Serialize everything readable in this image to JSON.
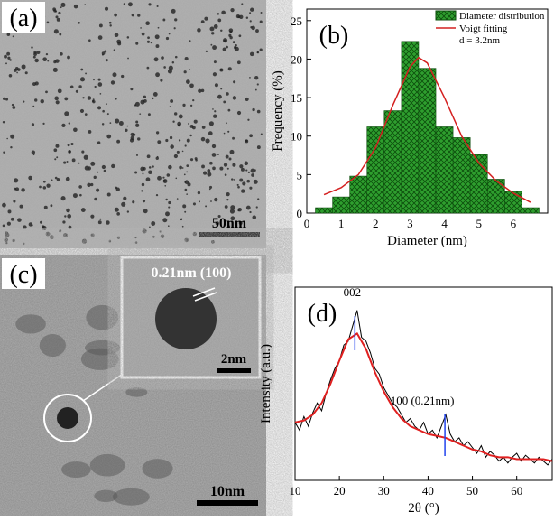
{
  "panels": {
    "a": {
      "label": "(a)",
      "scale_bar": "50nm"
    },
    "c": {
      "label": "(c)",
      "scale_bar": "10nm",
      "inset_label": "0.21nm (100)",
      "inset_scale_bar": "2nm"
    }
  },
  "chart_data": [
    {
      "type": "histogram",
      "label": "(b)",
      "name": "Diameter distribution",
      "color": "#2e9e2e",
      "xlabel": "Diameter (nm)",
      "ylabel": "Frequency (%)",
      "bins": [
        0.25,
        0.75,
        1.25,
        1.75,
        2.25,
        2.75,
        3.25,
        3.75,
        4.25,
        4.75,
        5.25,
        5.75,
        6.25,
        6.75
      ],
      "values": [
        0.7,
        2.1,
        4.8,
        11.2,
        13.3,
        22.3,
        18.8,
        11.2,
        9.8,
        7.6,
        4.4,
        2.8,
        0.7
      ],
      "fit": {
        "name": "Voigt fitting",
        "color": "#d42020",
        "x": [
          0.5,
          1,
          1.5,
          2,
          2.5,
          3,
          3.25,
          3.5,
          4,
          4.5,
          5,
          5.5,
          6,
          6.5
        ],
        "values": [
          2.4,
          3.3,
          5,
          8.5,
          14,
          19,
          20.2,
          19.5,
          15,
          10,
          6.5,
          4.2,
          2.6,
          1.4
        ]
      },
      "annotation": "d = 3.2nm",
      "xlim": [
        0,
        7
      ],
      "ylim": [
        0,
        26.5
      ],
      "xticks": [
        0,
        1,
        2,
        3,
        4,
        5,
        6
      ],
      "yticks": [
        0,
        5,
        10,
        15,
        20,
        25
      ]
    },
    {
      "type": "line",
      "label": "(d)",
      "xlabel": "2θ (°)",
      "ylabel": "Intensity (a.u.)",
      "xlim": [
        10,
        68
      ],
      "ylim": [
        0,
        100
      ],
      "xticks": [
        10,
        20,
        30,
        40,
        50,
        60
      ],
      "series": [
        {
          "name": null,
          "color": "#000000",
          "x": [
            10,
            11,
            12,
            13,
            14,
            15,
            16,
            17,
            18,
            19,
            20,
            21,
            22,
            23,
            24,
            25,
            26,
            27,
            28,
            29,
            30,
            31,
            32,
            33,
            34,
            35,
            36,
            37,
            38,
            39,
            40,
            41,
            42,
            43,
            44,
            45,
            46,
            47,
            48,
            49,
            50,
            51,
            52,
            53,
            54,
            55,
            56,
            57,
            58,
            59,
            60,
            61,
            62,
            63,
            64,
            65,
            66,
            67,
            68
          ],
          "values": [
            30,
            26,
            33,
            28,
            35,
            40,
            36,
            45,
            52,
            58,
            62,
            70,
            72,
            80,
            88,
            74,
            72,
            66,
            58,
            55,
            48,
            44,
            40,
            38,
            34,
            30,
            32,
            28,
            26,
            30,
            24,
            26,
            22,
            28,
            34,
            24,
            20,
            22,
            18,
            20,
            17,
            14,
            18,
            12,
            15,
            13,
            10,
            12,
            9,
            12,
            14,
            10,
            13,
            11,
            9,
            12,
            10,
            8,
            11
          ]
        },
        {
          "name": null,
          "color": "#e02020",
          "x": [
            10,
            12,
            14,
            16,
            18,
            20,
            22,
            24,
            26,
            28,
            30,
            32,
            34,
            36,
            38,
            40,
            42,
            44,
            46,
            48,
            50,
            52,
            54,
            56,
            58,
            60,
            62,
            64,
            66,
            68
          ],
          "values": [
            30,
            31,
            34,
            40,
            50,
            62,
            73,
            76,
            68,
            56,
            46,
            38,
            32,
            28,
            26,
            24,
            23,
            22,
            20,
            18,
            16,
            15,
            13,
            12,
            12,
            11,
            11,
            11,
            11,
            10
          ]
        }
      ],
      "peaks": [
        {
          "x": 23.5,
          "label": "002"
        },
        {
          "x": 43.8,
          "label": "100 (0.21nm)"
        }
      ],
      "peak_color": "#2244ee"
    }
  ]
}
